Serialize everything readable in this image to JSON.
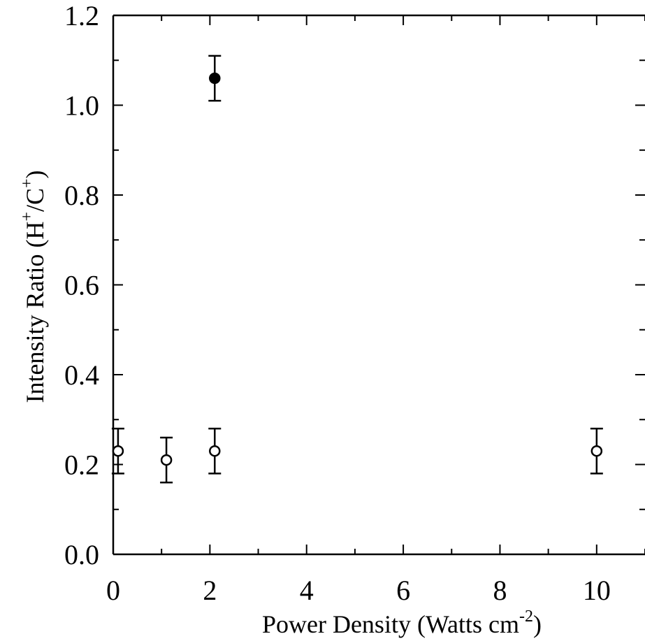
{
  "chart_data": {
    "type": "scatter",
    "xlabel": {
      "base": "Power Density (Watts cm",
      "exp": "-2",
      "close": ")"
    },
    "ylabel": {
      "base": "Intensity Ratio (H",
      "sup1": "+",
      "mid": "/C",
      "sup2": "+",
      "close": ")"
    },
    "xlim": [
      0,
      11
    ],
    "ylim": [
      0.0,
      1.2
    ],
    "x_major_ticks": [
      0,
      2,
      4,
      6,
      8,
      10
    ],
    "x_tick_labels": [
      "0",
      "2",
      "4",
      "6",
      "8",
      "10"
    ],
    "y_major_ticks": [
      0.0,
      0.2,
      0.4,
      0.6,
      0.8,
      1.0,
      1.2
    ],
    "y_tick_labels": [
      "0.0",
      "0.2",
      "0.4",
      "0.6",
      "0.8",
      "1.0",
      "1.2"
    ],
    "grid": false,
    "legend": "none",
    "series": [
      {
        "marker": "open-circle",
        "color": "#000000",
        "points": [
          {
            "x": 0.1,
            "y": 0.23,
            "err": 0.05
          },
          {
            "x": 1.1,
            "y": 0.21,
            "err": 0.05
          },
          {
            "x": 2.1,
            "y": 0.23,
            "err": 0.05
          },
          {
            "x": 10.0,
            "y": 0.23,
            "err": 0.05
          }
        ]
      },
      {
        "marker": "filled-circle",
        "color": "#000000",
        "points": [
          {
            "x": 2.1,
            "y": 1.06,
            "err": 0.05
          }
        ]
      }
    ]
  }
}
